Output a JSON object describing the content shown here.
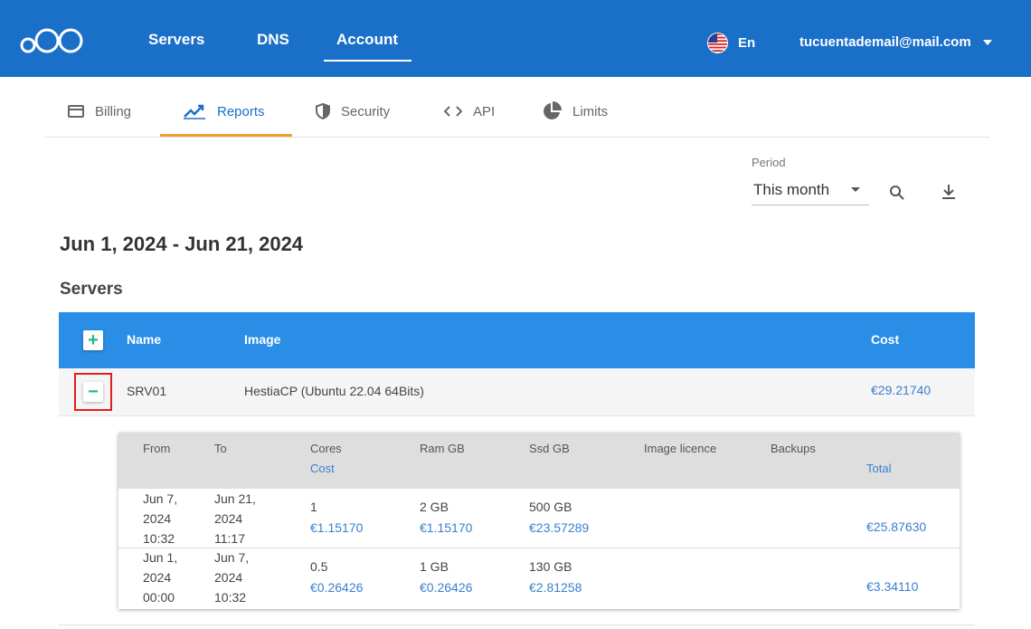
{
  "topbar": {
    "nav": [
      {
        "label": "Servers"
      },
      {
        "label": "DNS"
      },
      {
        "label": "Account"
      }
    ],
    "language": "En",
    "user_email": "tucuentademail@mail.com",
    "color": "#1a6fc9"
  },
  "subtabs": [
    {
      "label": "Billing",
      "icon": "credit-card-icon"
    },
    {
      "label": "Reports",
      "icon": "trending-up-icon",
      "active": true
    },
    {
      "label": "Security",
      "icon": "shield-icon"
    },
    {
      "label": "API",
      "icon": "code-icon"
    },
    {
      "label": "Limits",
      "icon": "pie-chart-icon"
    }
  ],
  "period": {
    "label": "Period",
    "value": "This month"
  },
  "report": {
    "date_range": "Jun 1, 2024 - Jun 21, 2024",
    "section_title": "Servers"
  },
  "table": {
    "headers": {
      "name": "Name",
      "image": "Image",
      "cost": "Cost"
    },
    "rows": [
      {
        "name": "SRV01",
        "image": "HestiaCP (Ubuntu 22.04 64Bits)",
        "cost": "€29.21740"
      }
    ]
  },
  "detail": {
    "headers": {
      "from": "From",
      "to": "To",
      "cores": "Cores",
      "cost": "Cost",
      "ram": "Ram GB",
      "ssd": "Ssd GB",
      "image_licence": "Image licence",
      "backups": "Backups",
      "total": "Total"
    },
    "rows": [
      {
        "from": [
          "Jun 7,",
          "2024",
          "10:32"
        ],
        "to": [
          "Jun 21,",
          "2024",
          "11:17"
        ],
        "cores": "1",
        "cores_cost": "€1.15170",
        "ram": "2 GB",
        "ram_cost": "€1.15170",
        "ssd": "500 GB",
        "ssd_cost": "€23.57289",
        "total": "€25.87630"
      },
      {
        "from": [
          "Jun 1,",
          "2024",
          "00:00"
        ],
        "to": [
          "Jun 7,",
          "2024",
          "10:32"
        ],
        "cores": "0.5",
        "cores_cost": "€0.26426",
        "ram": "1 GB",
        "ram_cost": "€0.26426",
        "ssd": "130 GB",
        "ssd_cost": "€2.81258",
        "total": "€3.34110"
      }
    ]
  }
}
